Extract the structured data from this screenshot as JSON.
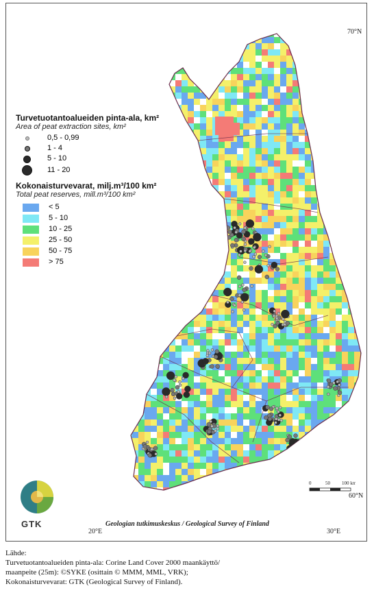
{
  "coords": {
    "lat_top": "70°N",
    "lat_bottom": "60°N",
    "lon_left": "20°E",
    "lon_right": "30°E"
  },
  "legend": {
    "sites_title_fi": "Turvetuotantoalueiden pinta-ala, km²",
    "sites_title_en": "Area of peat extraction sites, km²",
    "sites_classes": [
      "0,5 - 0,99",
      "1 - 4",
      "5 - 10",
      "11 - 20"
    ],
    "reserves_title_fi": "Kokonaisturvevarat, milj.m³/100 km²",
    "reserves_title_en": "Total peat reserves, mill.m³/100 km²",
    "reserves_classes": [
      {
        "label": "< 5",
        "color": "#6aa8ef"
      },
      {
        "label": "5 - 10",
        "color": "#7fe8f5"
      },
      {
        "label": "10 - 25",
        "color": "#5ee07a"
      },
      {
        "label": "25 - 50",
        "color": "#f4f06a"
      },
      {
        "label": "50 - 75",
        "color": "#f8d35c"
      },
      {
        "label": "> 75",
        "color": "#f47b76"
      }
    ]
  },
  "scale": {
    "ticks": [
      "0",
      "50",
      "100 km"
    ]
  },
  "branding": {
    "logo_text": "GTK",
    "organization": "Geologian tutkimuskeskus / Geological Survey of Finland"
  },
  "source": {
    "heading": "Lähde:",
    "line1": "Turvetuotantoalueiden pinta-ala: Corine Land Cover 2000 maankäyttö/",
    "line2": "maanpeite (25m): ©SYKE (osittain © MMM, MML, VRK);",
    "line3": "Kokonaisturvevarat: GTK (Geological Survey of Finland)."
  }
}
